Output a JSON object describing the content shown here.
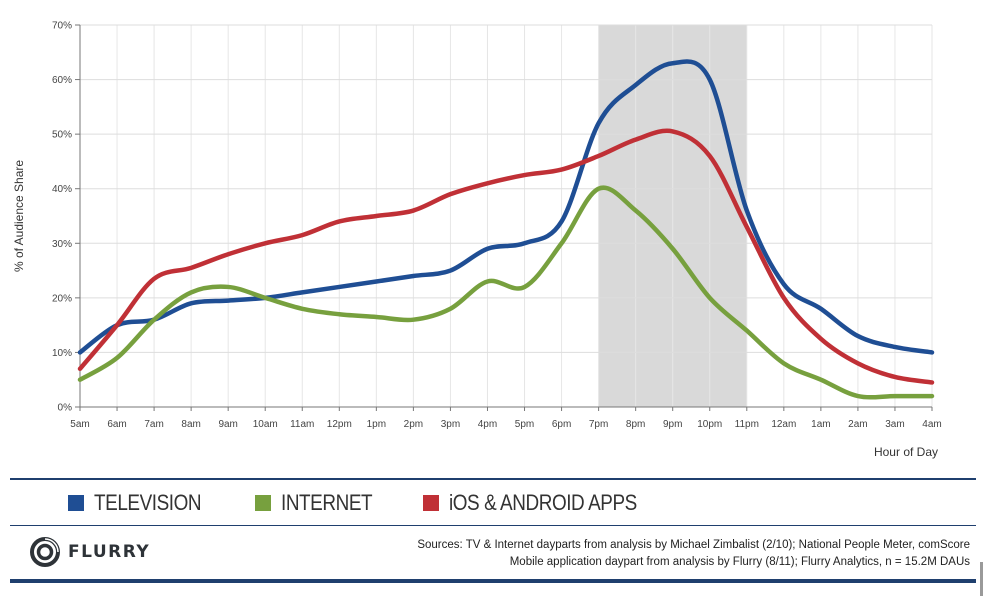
{
  "chart_data": {
    "type": "line",
    "title": "",
    "ylabel": "% of Audience Share",
    "xlabel": "Hour of Day",
    "ylim": [
      0,
      70
    ],
    "y_ticks": [
      "0%",
      "10%",
      "20%",
      "30%",
      "40%",
      "50%",
      "60%",
      "70%"
    ],
    "categories": [
      "5am",
      "6am",
      "7am",
      "8am",
      "9am",
      "10am",
      "11am",
      "12pm",
      "1pm",
      "2pm",
      "3pm",
      "4pm",
      "5pm",
      "6pm",
      "7pm",
      "8pm",
      "9pm",
      "10pm",
      "11pm",
      "12am",
      "1am",
      "2am",
      "3am",
      "4am"
    ],
    "highlight": {
      "from": "7pm",
      "to": "11pm"
    },
    "series": [
      {
        "name": "TELEVISION",
        "color": "#1f4e94",
        "values": [
          10,
          15,
          16,
          19,
          19.5,
          20,
          21,
          22,
          23,
          24,
          25,
          29,
          30,
          34,
          52,
          59,
          63,
          60,
          36,
          22.5,
          18,
          13,
          11,
          10
        ]
      },
      {
        "name": "INTERNET",
        "color": "#77a03e",
        "values": [
          5,
          9,
          16,
          21,
          22,
          20,
          18,
          17,
          16.5,
          16,
          18,
          23,
          22,
          30,
          40,
          36,
          29,
          20,
          14,
          8,
          5,
          2,
          2,
          2
        ]
      },
      {
        "name": "iOS & ANDROID APPS",
        "color": "#c03036",
        "values": [
          7,
          15,
          23.5,
          25.5,
          28,
          30,
          31.5,
          34,
          35,
          36,
          39,
          41,
          42.5,
          43.5,
          46,
          49,
          50.5,
          46,
          33,
          20,
          12.5,
          8,
          5.5,
          4.5
        ]
      }
    ]
  },
  "legend": {
    "items": [
      {
        "label": "TELEVISION",
        "color": "#1f4e94"
      },
      {
        "label": "INTERNET",
        "color": "#77a03e"
      },
      {
        "label": "iOS & ANDROID APPS",
        "color": "#c03036"
      }
    ]
  },
  "footer": {
    "brand": "FLURRY",
    "source_line_1": "Sources: TV & Internet dayparts from analysis by Michael Zimbalist (2/10); National People Meter, comScore",
    "source_line_2": "Mobile application daypart from analysis by Flurry (8/11); Flurry Analytics, n = 15.2M DAUs"
  }
}
